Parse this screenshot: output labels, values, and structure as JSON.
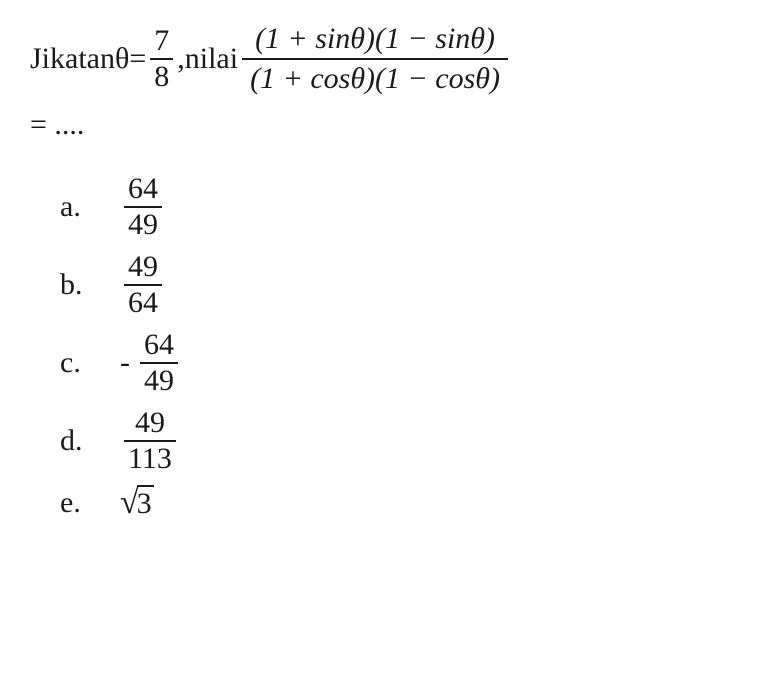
{
  "question": {
    "prefix": "Jikatanθ=",
    "given_num": "7",
    "given_den": "8",
    "mid": ",nilai ",
    "expr_num": "(1 + sinθ)(1 − sinθ)",
    "expr_den": "(1 + cosθ)(1 − cosθ)",
    "equals": "= ....",
    "font_size": 30,
    "text_color": "#1a1a1a",
    "background_color": "#ffffff"
  },
  "options": {
    "a": {
      "label": "a.",
      "num": "64",
      "den": "49",
      "negative": false,
      "type": "fraction"
    },
    "b": {
      "label": "b.",
      "num": "49",
      "den": "64",
      "negative": false,
      "type": "fraction"
    },
    "c": {
      "label": "c.",
      "num": "64",
      "den": "49",
      "negative": true,
      "type": "fraction"
    },
    "d": {
      "label": "d.",
      "num": "49",
      "den": "113",
      "negative": false,
      "type": "fraction"
    },
    "e": {
      "label": "e.",
      "radicand": "3",
      "type": "sqrt"
    }
  }
}
